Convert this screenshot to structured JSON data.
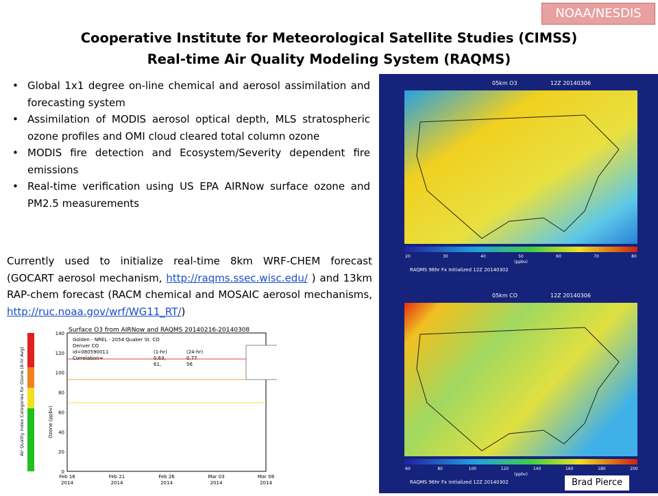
{
  "badge": "NOAA/NESDIS",
  "title": [
    "Cooperative Institute for Meteorological Satellite Studies (CIMSS)",
    "Real-time Air Quality Modeling System (RAQMS)"
  ],
  "bullets": [
    "Global 1x1 degree on-line chemical and aerosol assimilation and forecasting system",
    "Assimilation of MODIS aerosol optical depth, MLS stratospheric ozone profiles and OMI cloud cleared total column ozone",
    "MODIS fire detection and Ecosystem/Severity dependent fire emissions",
    "Real-time verification using US EPA AIRNow surface ozone and PM2.5 measurements"
  ],
  "paragraph": {
    "parts": [
      "Currently used to initialize real-time 8km WRF-CHEM forecast (GOCART aerosol mechanism, ",
      "http://raqms.ssec.wisc.edu/",
      " ) and  13km RAP-chem forecast (RACM chemical and MOSAIC aerosol mechanisms, ",
      "http://ruc.noaa.gov/wrf/WG11_RT/",
      ")"
    ]
  },
  "maps": [
    {
      "title": "05km O3",
      "time": "12Z 20140306",
      "colorbar": [
        "20",
        "30",
        "40",
        "50",
        "60",
        "70",
        "80"
      ],
      "unit": "(ppbv)",
      "footer": "RAQMS 96hr Fx Initialized 12Z 20140302"
    },
    {
      "title": "05km CO",
      "time": "12Z 20140306",
      "colorbar": [
        "60",
        "80",
        "100",
        "120",
        "140",
        "160",
        "180",
        "200"
      ],
      "unit": "(ppbv)",
      "footer": "RAQMS 96hr Fx Initialized 12Z 20140302"
    }
  ],
  "ozone_plot": {
    "title": "Surface O3 from AIRNow and RAQMS 20140216-20140308",
    "station": [
      "Golden - NREL - 2054 Quaker St. CO",
      "Denver CO",
      "id=080590011"
    ],
    "stats": [
      "(1-hr)",
      "(24-hr)",
      "Correlation=",
      "0.63,",
      "0.77",
      "61,",
      "56"
    ],
    "y_label": "Ozone (ppbv)",
    "side_label": "Air Quality Index Categories for Ozone (8-hr Avg)",
    "yticks": [
      "0",
      "20",
      "40",
      "60",
      "80",
      "100",
      "120",
      "140"
    ],
    "xticks": [
      [
        "Feb 16",
        "2014"
      ],
      [
        "Feb 21",
        "2014"
      ],
      [
        "Feb 26",
        "2014"
      ],
      [
        "Mar 03",
        "2014"
      ],
      [
        "Mar 08",
        "2014"
      ]
    ]
  },
  "credit": "Brad Pierce"
}
